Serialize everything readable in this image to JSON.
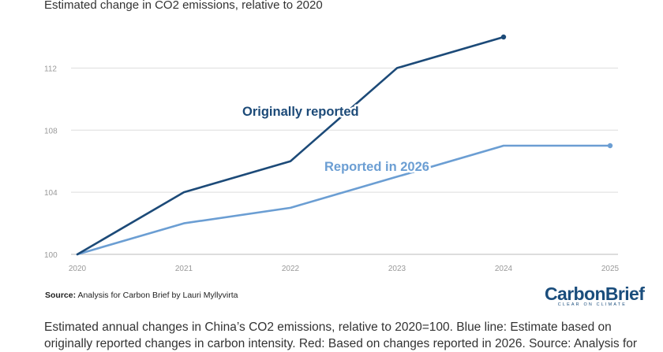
{
  "subtitle": "Estimated change in CO2 emissions, relative to 2020",
  "source": {
    "label": "Source:",
    "text": "Analysis for Carbon Brief by Lauri Myllyvirta"
  },
  "logo": {
    "wordmark": "CarbonBrief",
    "tagline": "CLEAR ON CLIMATE"
  },
  "caption": "Estimated annual changes in China’s CO2 emissions, relative to 2020=100. Blue line: Estimate based on originally reported changes in carbon intensity. Red: Based on changes reported in 2026. Source: Analysis for",
  "colors": {
    "originally_reported": "#1c4a78",
    "reported_2026": "#6b9ed3",
    "grid": "#dddddd",
    "tick_text": "#999999"
  },
  "chart_data": {
    "type": "line",
    "x": [
      "2020",
      "2021",
      "2022",
      "2023",
      "2024",
      "2025"
    ],
    "ylim": [
      100,
      114
    ],
    "yticks": [
      100,
      104,
      108,
      112
    ],
    "series": [
      {
        "name": "Originally reported",
        "values": [
          100,
          104,
          106,
          112,
          114,
          null
        ]
      },
      {
        "name": "Reported in 2026",
        "values": [
          100,
          102,
          103,
          105,
          107,
          107
        ]
      }
    ]
  }
}
